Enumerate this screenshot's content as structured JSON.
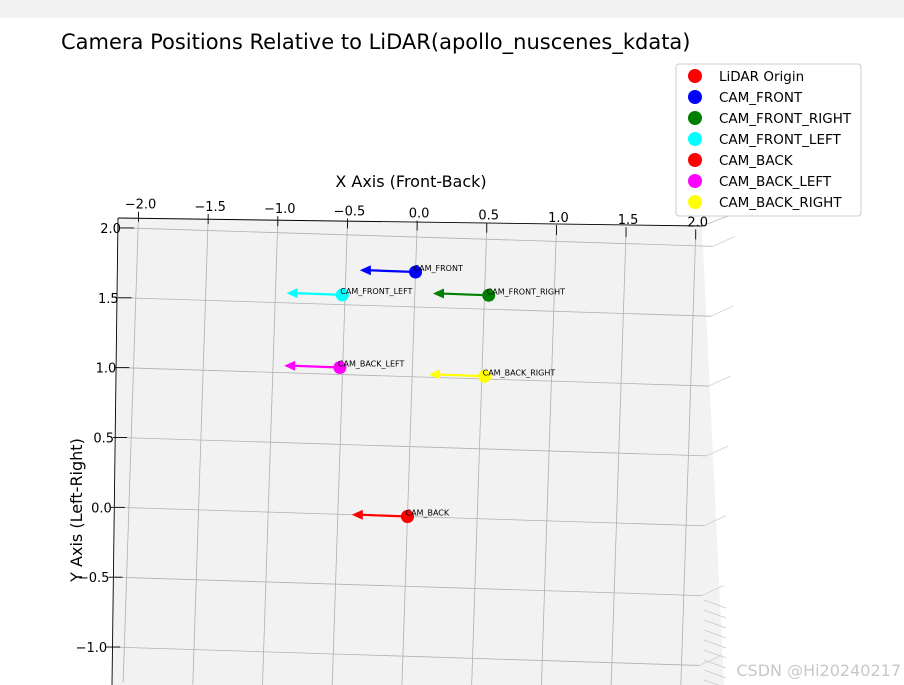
{
  "chart_data": {
    "type": "scatter",
    "title": "Camera Positions Relative to LiDAR(apollo_nuscenes_kdata)",
    "xlabel": "X Axis (Front-Back)",
    "ylabel": "Y Axis (Left-Right)",
    "xlim": [
      -2.1,
      2.1
    ],
    "ylim": [
      -1.25,
      2.1
    ],
    "x_ticks": [
      "−2.0",
      "−1.5",
      "−1.0",
      "−0.5",
      "0.0",
      "0.5",
      "1.0",
      "1.5",
      "2.0"
    ],
    "x_tick_values": [
      -2.0,
      -1.5,
      -1.0,
      -0.5,
      0.0,
      0.5,
      1.0,
      1.5,
      2.0
    ],
    "y_ticks": [
      "2.0",
      "1.5",
      "1.0",
      "0.5",
      "0.0",
      "−0.5",
      "−1.0"
    ],
    "y_tick_values": [
      2.0,
      1.5,
      1.0,
      0.5,
      0.0,
      -0.5,
      -1.0
    ],
    "grid": true,
    "legend_position": "top-right",
    "legend": [
      {
        "label": "LiDAR Origin",
        "color": "#ff0000"
      },
      {
        "label": "CAM_FRONT",
        "color": "#0000ff"
      },
      {
        "label": "CAM_FRONT_RIGHT",
        "color": "#008000"
      },
      {
        "label": "CAM_FRONT_LEFT",
        "color": "#00ffff"
      },
      {
        "label": "CAM_BACK",
        "color": "#ff0000"
      },
      {
        "label": "CAM_BACK_LEFT",
        "color": "#ff00ff"
      },
      {
        "label": "CAM_BACK_RIGHT",
        "color": "#ffff00"
      }
    ],
    "points": [
      {
        "name": "LiDAR Origin",
        "x": 0.0,
        "y": 0.0,
        "color": "#ff0000",
        "label": "",
        "arrow_dx": 0
      },
      {
        "name": "CAM_BACK",
        "x": 0.0,
        "y": 0.0,
        "color": "#ff0000",
        "label": "CAM_BACK",
        "arrow_dx": -0.4
      },
      {
        "name": "CAM_FRONT",
        "x": 0.0,
        "y": 1.75,
        "color": "#0000ff",
        "label": "CAM_FRONT",
        "arrow_dx": -0.4
      },
      {
        "name": "CAM_FRONT_RIGHT",
        "x": 0.53,
        "y": 1.6,
        "color": "#008000",
        "label": "CAM_FRONT_RIGHT",
        "arrow_dx": -0.4
      },
      {
        "name": "CAM_FRONT_LEFT",
        "x": -0.52,
        "y": 1.57,
        "color": "#00ffff",
        "label": "CAM_FRONT_LEFT",
        "arrow_dx": -0.4
      },
      {
        "name": "CAM_BACK_LEFT",
        "x": -0.52,
        "y": 1.05,
        "color": "#ff00ff",
        "label": "CAM_BACK_LEFT",
        "arrow_dx": -0.4
      },
      {
        "name": "CAM_BACK_RIGHT",
        "x": 0.52,
        "y": 1.02,
        "color": "#ffff00",
        "label": "CAM_BACK_RIGHT",
        "arrow_dx": -0.4
      }
    ]
  },
  "watermark": "CSDN @Hi20240217"
}
